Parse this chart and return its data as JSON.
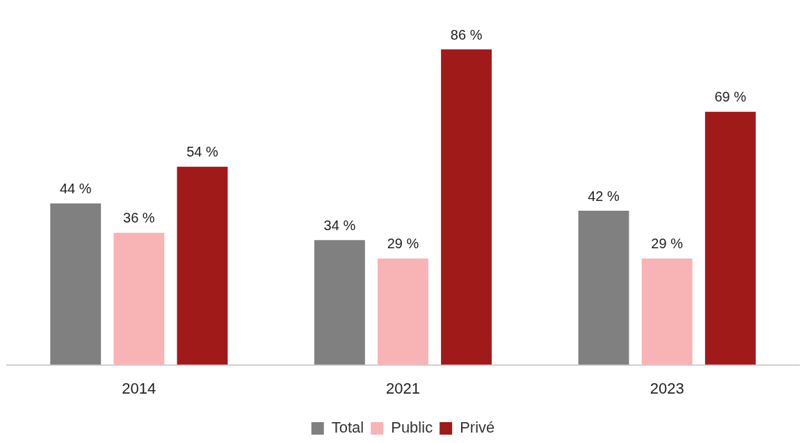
{
  "chart_data": {
    "type": "bar",
    "categories": [
      "2014",
      "2021",
      "2023"
    ],
    "series": [
      {
        "name": "Total",
        "color": "#808080",
        "values": [
          44,
          34,
          42
        ],
        "value_labels": [
          "44 %",
          "34 %",
          "42 %"
        ]
      },
      {
        "name": "Public",
        "color": "#f8b4b4",
        "values": [
          36,
          29,
          29
        ],
        "value_labels": [
          "36 %",
          "29 %",
          "29 %"
        ]
      },
      {
        "name": "Privé",
        "color": "#a01a1a",
        "values": [
          54,
          86,
          69
        ],
        "value_labels": [
          "54 %",
          "86 %",
          "69 %"
        ]
      }
    ],
    "legend": "bottom",
    "grid": false
  }
}
